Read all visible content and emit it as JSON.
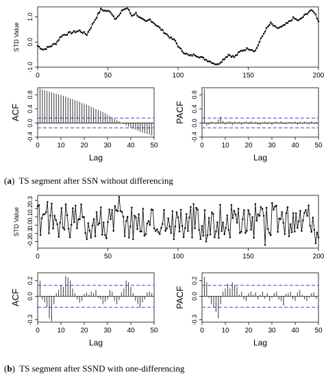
{
  "captions": {
    "a": {
      "letter": "a",
      "text": "TS segment after SSN without differencing"
    },
    "b": {
      "letter": "b",
      "text": "TS segment after SSND with one-differencing"
    }
  },
  "chart_data": [
    {
      "id": "a-series",
      "type": "line",
      "ylabel": "STD Value",
      "xlabel": "",
      "xlim": [
        0,
        200
      ],
      "ylim": [
        -1.0,
        1.4
      ],
      "xticks": [
        0,
        50,
        100,
        150,
        200
      ],
      "yticks": [
        -1.0,
        0.0,
        1.0
      ],
      "anchors": [
        [
          0,
          -0.15
        ],
        [
          4,
          -0.3
        ],
        [
          8,
          -0.2
        ],
        [
          13,
          -0.05
        ],
        [
          17,
          0.25
        ],
        [
          22,
          0.35
        ],
        [
          26,
          0.4
        ],
        [
          30,
          0.45
        ],
        [
          35,
          0.3
        ],
        [
          38,
          0.6
        ],
        [
          42,
          1.0
        ],
        [
          45,
          1.3
        ],
        [
          48,
          1.25
        ],
        [
          52,
          1.2
        ],
        [
          55,
          0.95
        ],
        [
          58,
          1.05
        ],
        [
          61,
          1.3
        ],
        [
          64,
          1.35
        ],
        [
          67,
          1.05
        ],
        [
          70,
          1.15
        ],
        [
          73,
          0.95
        ],
        [
          77,
          0.8
        ],
        [
          80,
          0.9
        ],
        [
          84,
          0.7
        ],
        [
          88,
          0.5
        ],
        [
          91,
          0.35
        ],
        [
          95,
          0.15
        ],
        [
          98,
          0.05
        ],
        [
          101,
          -0.25
        ],
        [
          104,
          -0.4
        ],
        [
          108,
          -0.55
        ],
        [
          112,
          -0.5
        ],
        [
          116,
          -0.6
        ],
        [
          120,
          -0.7
        ],
        [
          124,
          -0.8
        ],
        [
          128,
          -0.9
        ],
        [
          132,
          -0.7
        ],
        [
          136,
          -0.5
        ],
        [
          140,
          -0.6
        ],
        [
          145,
          -0.35
        ],
        [
          150,
          -0.25
        ],
        [
          155,
          -0.35
        ],
        [
          158,
          0.0
        ],
        [
          162,
          0.45
        ],
        [
          166,
          0.75
        ],
        [
          170,
          0.55
        ],
        [
          174,
          0.6
        ],
        [
          178,
          0.75
        ],
        [
          182,
          0.95
        ],
        [
          186,
          0.85
        ],
        [
          190,
          1.05
        ],
        [
          194,
          1.25
        ],
        [
          197,
          1.2
        ],
        [
          200,
          0.85
        ]
      ],
      "seed": 7,
      "noise": 0.045,
      "marker": "point"
    },
    {
      "id": "a-acf",
      "type": "acf",
      "ylabel": "ACF",
      "xlabel": "Lag",
      "xlim": [
        0,
        50
      ],
      "ylim": [
        -0.4,
        1.0
      ],
      "xticks": [
        0,
        10,
        20,
        30,
        40,
        50
      ],
      "yticks": [
        -0.4,
        0.0,
        0.4,
        0.8
      ],
      "conf": 0.14,
      "values": [
        1.0,
        0.97,
        0.95,
        0.93,
        0.91,
        0.89,
        0.87,
        0.85,
        0.83,
        0.81,
        0.79,
        0.77,
        0.75,
        0.72,
        0.7,
        0.68,
        0.65,
        0.63,
        0.6,
        0.57,
        0.55,
        0.52,
        0.49,
        0.46,
        0.43,
        0.4,
        0.37,
        0.34,
        0.31,
        0.28,
        0.24,
        0.2,
        0.16,
        0.12,
        0.08,
        0.05,
        0.01,
        -0.03,
        -0.07,
        -0.1,
        -0.13,
        -0.16,
        -0.19,
        -0.22,
        -0.25,
        -0.27,
        -0.29,
        -0.31,
        -0.33,
        -0.35,
        -0.37
      ]
    },
    {
      "id": "a-pacf",
      "type": "acf",
      "ylabel": "PACF",
      "xlabel": "Lag",
      "xlim": [
        0,
        50
      ],
      "ylim": [
        -0.4,
        1.0
      ],
      "xticks": [
        0,
        10,
        20,
        30,
        40,
        50
      ],
      "yticks": [
        -0.4,
        0.0,
        0.4,
        0.8
      ],
      "conf": 0.14,
      "values": [
        0.96,
        -0.08,
        -0.05,
        0.04,
        0.02,
        -0.03,
        0.1,
        0.18,
        0.06,
        -0.04,
        0.03,
        0.05,
        -0.06,
        0.04,
        -0.02,
        0.03,
        -0.05,
        0.02,
        0.04,
        -0.03,
        0.05,
        -0.02,
        0.03,
        -0.04,
        -0.06,
        0.02,
        0.04,
        -0.03,
        0.02,
        -0.05,
        0.03,
        0.04,
        -0.02,
        0.05,
        -0.03,
        -0.04,
        0.02,
        0.03,
        -0.02,
        0.04,
        -0.05,
        0.03,
        -0.02,
        0.04,
        0.02,
        -0.03,
        0.05,
        -0.02,
        0.03,
        0.02
      ]
    },
    {
      "id": "b-series",
      "type": "line",
      "ylabel": "STD Value",
      "xlabel": "",
      "xlim": [
        0,
        200
      ],
      "ylim": [
        -0.28,
        0.36
      ],
      "xticks": [
        0,
        50,
        100,
        150,
        200
      ],
      "yticks": [
        -0.2,
        -0.1,
        0.0,
        0.1,
        0.2,
        0.3
      ],
      "seed": 42,
      "noise": 0.14,
      "marker": "point",
      "overrides": [
        [
          2,
          -0.12
        ],
        [
          10,
          0.26
        ],
        [
          58,
          0.34
        ],
        [
          120,
          -0.2
        ],
        [
          162,
          -0.24
        ],
        [
          198,
          -0.22
        ],
        [
          200,
          -0.15
        ]
      ]
    },
    {
      "id": "b-acf",
      "type": "acf",
      "ylabel": "ACF",
      "xlabel": "Lag",
      "xlim": [
        0,
        50
      ],
      "ylim": [
        -0.33,
        0.3
      ],
      "xticks": [
        0,
        10,
        20,
        30,
        40,
        50
      ],
      "yticks": [
        -0.3,
        0.0,
        0.2
      ],
      "conf": 0.14,
      "values": [
        0.25,
        0.2,
        -0.04,
        -0.08,
        -0.14,
        -0.28,
        -0.32,
        -0.1,
        0.04,
        0.08,
        0.14,
        0.12,
        0.26,
        0.24,
        0.2,
        0.1,
        0.04,
        -0.04,
        -0.08,
        -0.06,
        0.03,
        0.05,
        0.02,
        0.06,
        0.04,
        0.08,
        -0.02,
        -0.04,
        -0.1,
        -0.07,
        -0.04,
        0.08,
        0.06,
        -0.06,
        -0.1,
        -0.05,
        0.05,
        0.1,
        0.2,
        0.18,
        0.12,
        0.04,
        -0.06,
        -0.1,
        -0.14,
        -0.08,
        -0.04,
        0.05,
        0.06,
        0.04
      ]
    },
    {
      "id": "b-pacf",
      "type": "acf",
      "ylabel": "PACF",
      "xlabel": "Lag",
      "xlim": [
        0,
        50
      ],
      "ylim": [
        -0.33,
        0.3
      ],
      "xticks": [
        0,
        10,
        20,
        30,
        40,
        50
      ],
      "yticks": [
        -0.3,
        0.0,
        0.2
      ],
      "conf": 0.14,
      "values": [
        0.25,
        0.18,
        -0.02,
        -0.1,
        -0.14,
        -0.2,
        -0.28,
        -0.1,
        0.06,
        0.1,
        0.16,
        0.1,
        0.18,
        0.14,
        0.12,
        0.02,
        0.06,
        -0.04,
        -0.06,
        0.04,
        0.06,
        0.02,
        0.05,
        -0.04,
        0.02,
        0.06,
        -0.03,
        0.04,
        -0.06,
        -0.02,
        0.04,
        0.06,
        -0.04,
        -0.06,
        -0.12,
        0.03,
        0.04,
        0.06,
        -0.04,
        -0.06,
        0.05,
        0.08,
        0.02,
        -0.04,
        -0.06,
        -0.02,
        0.04,
        0.05,
        -0.03,
        0.02
      ]
    }
  ]
}
